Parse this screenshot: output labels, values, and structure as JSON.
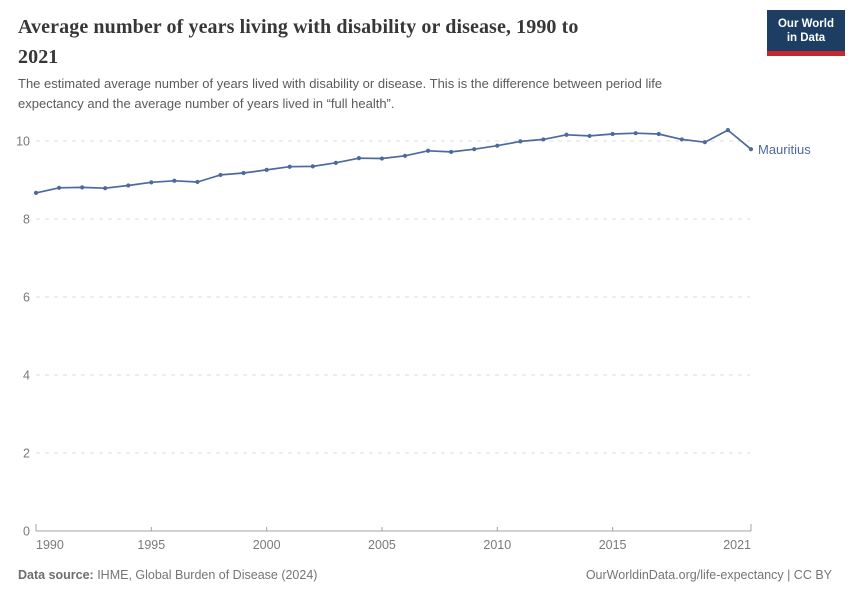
{
  "header": {
    "title_line1": "Average number of years living with disability or disease, 1990 to",
    "title_line2": "2021",
    "subtitle_line1": "The estimated average number of years lived with disability or disease. This is the difference between period life",
    "subtitle_line2": "expectancy and the average number of years lived in “full health”.",
    "logo": {
      "line1": "Our World",
      "line2": "in Data",
      "bg_color": "#1d3d63",
      "bar_color": "#c5272d"
    }
  },
  "chart_data": {
    "type": "line",
    "title": "Average number of years living with disability or disease, 1990 to 2021",
    "xlabel": "",
    "ylabel": "",
    "x": [
      1990,
      1991,
      1992,
      1993,
      1994,
      1995,
      1996,
      1997,
      1998,
      1999,
      2000,
      2001,
      2002,
      2003,
      2004,
      2005,
      2006,
      2007,
      2008,
      2009,
      2010,
      2011,
      2012,
      2013,
      2014,
      2015,
      2016,
      2017,
      2018,
      2019,
      2020,
      2021
    ],
    "series": [
      {
        "name": "Mauritius",
        "color": "#4c6a9c",
        "values": [
          8.67,
          8.8,
          8.81,
          8.79,
          8.86,
          8.94,
          8.98,
          8.95,
          9.13,
          9.18,
          9.26,
          9.34,
          9.35,
          9.44,
          9.56,
          9.55,
          9.62,
          9.75,
          9.72,
          9.79,
          9.88,
          9.99,
          10.04,
          10.16,
          10.13,
          10.18,
          10.2,
          10.18,
          10.04,
          9.97,
          10.28,
          9.79
        ]
      }
    ],
    "x_ticks": [
      1990,
      1995,
      2000,
      2005,
      2010,
      2015,
      2021
    ],
    "y_ticks": [
      0,
      2,
      4,
      6,
      8,
      10
    ],
    "xlim": [
      1990,
      2021
    ],
    "ylim": [
      0,
      10.8
    ],
    "grid": "horizontal-dashed",
    "grid_color": "#dcdcdc",
    "axis_color": "#a3a3a3",
    "tick_label_color": "#7a7a7a",
    "legend_position": "end-of-line"
  },
  "footer": {
    "source_label": "Data source:",
    "source_value": " IHME, Global Burden of Disease (2024)",
    "link": "OurWorldinData.org/life-expectancy | CC BY"
  }
}
